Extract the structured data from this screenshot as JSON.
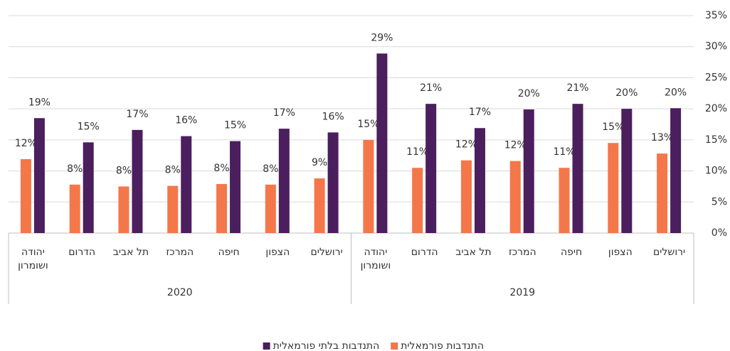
{
  "chart_data": {
    "type": "bar",
    "categories": [
      "יהודה ושומרון",
      "הדרום",
      "תל אביב",
      "המרכז",
      "חיפה",
      "הצפון",
      "ירושלים",
      "יהודה ושומרון",
      "הדרום",
      "תל אביב",
      "המרכז",
      "חיפה",
      "הצפון",
      "ירושלים"
    ],
    "group_labels": [
      "2020",
      "2019"
    ],
    "series": [
      {
        "name": "התנדבות פורמאלית",
        "color": "#f4774a",
        "values": [
          11.9,
          7.8,
          7.5,
          7.6,
          7.9,
          7.8,
          8.8,
          15.0,
          10.5,
          11.7,
          11.6,
          10.5,
          14.5,
          12.8
        ],
        "value_labels": [
          "12%",
          "8%",
          "8%",
          "8%",
          "8%",
          "8%",
          "9%",
          "15%",
          "11%",
          "12%",
          "12%",
          "11%",
          "15%",
          "13%"
        ]
      },
      {
        "name": "התנדבות בלתי פורמאלית",
        "color": "#4b1e5e",
        "values": [
          18.5,
          14.6,
          16.6,
          15.6,
          14.8,
          16.8,
          16.2,
          28.9,
          20.8,
          16.9,
          19.9,
          20.8,
          20.0,
          20.1
        ],
        "value_labels": [
          "19%",
          "15%",
          "17%",
          "16%",
          "15%",
          "17%",
          "16%",
          "29%",
          "21%",
          "17%",
          "20%",
          "21%",
          "20%",
          "20%"
        ]
      }
    ],
    "ylim": [
      0,
      35
    ],
    "yticks": [
      {
        "value": 0,
        "label": "0%"
      },
      {
        "value": 5,
        "label": "5%"
      },
      {
        "value": 10,
        "label": "10%"
      },
      {
        "value": 15,
        "label": "15%"
      },
      {
        "value": 20,
        "label": "20%"
      },
      {
        "value": 25,
        "label": "25%"
      },
      {
        "value": 30,
        "label": "30%"
      },
      {
        "value": 35,
        "label": "35%"
      }
    ],
    "grid": true
  }
}
